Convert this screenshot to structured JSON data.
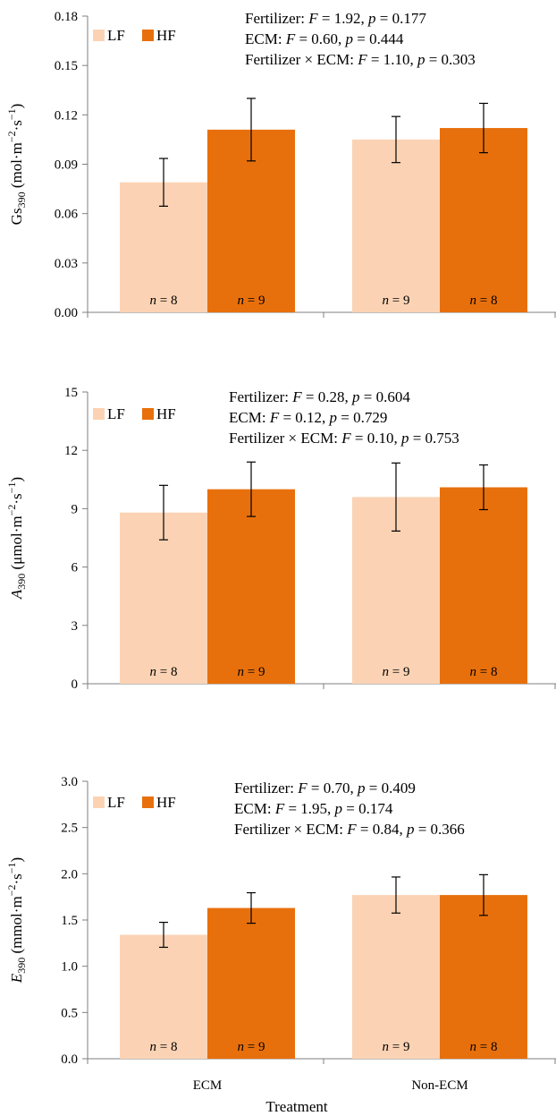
{
  "chart_data": [
    {
      "type": "bar",
      "categories": [
        "ECM",
        "Non-ECM"
      ],
      "ylabel": "Gs390 (mol·m−2·s−1)",
      "ylabel_parts": {
        "main": "Gs",
        "main_italic": false,
        "sub": "390",
        "unit_prefix": " (mol·m",
        "exp1": "−2",
        "unit_mid": "·s",
        "exp2": "−1",
        "unit_suffix": ")"
      },
      "ylim": [
        0,
        0.18
      ],
      "yticks": [
        "0.00",
        "0.03",
        "0.06",
        "0.09",
        "0.12",
        "0.15",
        "0.18"
      ],
      "series": [
        {
          "name": "LF",
          "color": "#fbd3b4",
          "values": [
            0.079,
            0.105
          ],
          "errors": [
            0.0145,
            0.014
          ],
          "n": [
            "8",
            "9"
          ]
        },
        {
          "name": "HF",
          "color": "#e8700c",
          "values": [
            0.111,
            0.112
          ],
          "errors": [
            0.019,
            0.015
          ],
          "n": [
            "9",
            "8"
          ]
        }
      ],
      "stats": [
        {
          "term": "Fertilizer: ",
          "F": "1.92",
          "p": "0.177"
        },
        {
          "term": "ECM: ",
          "F": "0.60",
          "p": "0.444"
        },
        {
          "term": "Fertilizer × ECM: ",
          "F": "1.10",
          "p": "0.303"
        }
      ],
      "legend": "top-left"
    },
    {
      "type": "bar",
      "categories": [
        "ECM",
        "Non-ECM"
      ],
      "ylabel": "A390 (μmol·m−2·s−1)",
      "ylabel_parts": {
        "main": "A",
        "main_italic": true,
        "sub": "390",
        "unit_prefix": " (μmol·m",
        "exp1": "−2",
        "unit_mid": "·s",
        "exp2": "−1",
        "unit_suffix": ")"
      },
      "ylim": [
        0,
        15
      ],
      "yticks": [
        "0",
        "3",
        "6",
        "9",
        "12",
        "15"
      ],
      "series": [
        {
          "name": "LF",
          "color": "#fbd3b4",
          "values": [
            8.8,
            9.6
          ],
          "errors": [
            1.4,
            1.75
          ],
          "n": [
            "8",
            "9"
          ]
        },
        {
          "name": "HF",
          "color": "#e8700c",
          "values": [
            10.0,
            10.1
          ],
          "errors": [
            1.4,
            1.15
          ],
          "n": [
            "9",
            "8"
          ]
        }
      ],
      "stats": [
        {
          "term": "Fertilizer: ",
          "F": "0.28",
          "p": "0.604"
        },
        {
          "term": "ECM: ",
          "F": "0.12",
          "p": "0.729"
        },
        {
          "term": "Fertilizer × ECM: ",
          "F": "0.10",
          "p": "0.753"
        }
      ],
      "legend": "top-left"
    },
    {
      "type": "bar",
      "categories": [
        "ECM",
        "Non-ECM"
      ],
      "xlabel": "Treatment",
      "ylabel": "E390 (mmol·m−2·s−1)",
      "ylabel_parts": {
        "main": "E",
        "main_italic": true,
        "sub": "390",
        "unit_prefix": " (mmol·m",
        "exp1": "−2",
        "unit_mid": "·s",
        "exp2": "−1",
        "unit_suffix": ")"
      },
      "ylim": [
        0,
        3.0
      ],
      "yticks": [
        "0.0",
        "0.5",
        "1.0",
        "1.5",
        "2.0",
        "2.5",
        "3.0"
      ],
      "series": [
        {
          "name": "LF",
          "color": "#fbd3b4",
          "values": [
            1.34,
            1.77
          ],
          "errors": [
            0.135,
            0.195
          ],
          "n": [
            "8",
            "9"
          ]
        },
        {
          "name": "HF",
          "color": "#e8700c",
          "values": [
            1.63,
            1.77
          ],
          "errors": [
            0.165,
            0.22
          ],
          "n": [
            "9",
            "8"
          ]
        }
      ],
      "stats": [
        {
          "term": "Fertilizer: ",
          "F": "0.70",
          "p": "0.409"
        },
        {
          "term": "ECM: ",
          "F": "1.95",
          "p": "0.174"
        },
        {
          "term": "Fertilizer × ECM: ",
          "F": "0.84",
          "p": "0.366"
        }
      ],
      "legend": "top-left"
    }
  ]
}
